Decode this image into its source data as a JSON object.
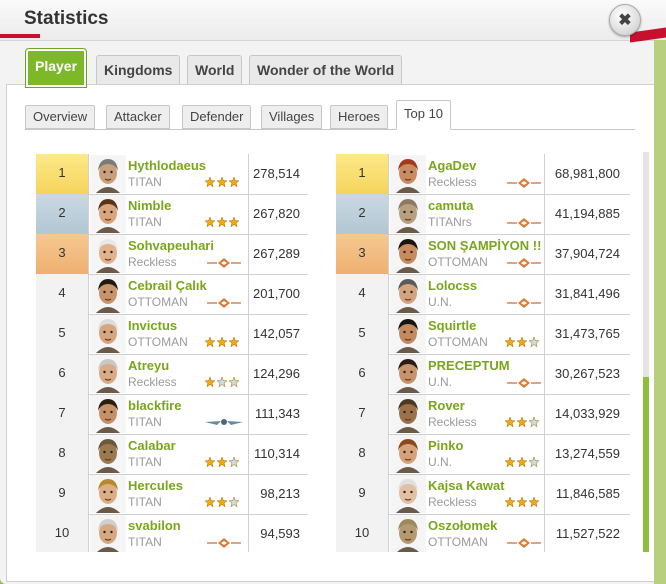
{
  "dialog": {
    "title": "Statistics",
    "close_label": "✖"
  },
  "main_tabs": [
    "Player",
    "Kingdoms",
    "World",
    "Wonder of the World"
  ],
  "sub_tabs": [
    "Overview",
    "Attacker",
    "Defender",
    "Villages",
    "Heroes",
    "Top 10"
  ],
  "left_table": [
    {
      "rank": "1",
      "name": "Hythlodaeus",
      "tribe": "TITAN",
      "points": "278,514",
      "badge": "stars-3-gold",
      "hair": "#7a7a7a",
      "skin": "#c9a07a"
    },
    {
      "rank": "2",
      "name": "Nimble",
      "tribe": "TITAN",
      "points": "267,820",
      "badge": "stars-3-gold",
      "hair": "#5a3418",
      "skin": "#d8a57c"
    },
    {
      "rank": "3",
      "name": "Sohvapeuhari",
      "tribe": "Reckless",
      "points": "267,289",
      "badge": "diamond-red",
      "hair": "#e8e8e8",
      "skin": "#e2b28c"
    },
    {
      "rank": "4",
      "name": "Cebrail Çalık",
      "tribe": "OTTOMAN",
      "points": "201,700",
      "badge": "diamond-red",
      "hair": "#1f1a14",
      "skin": "#c9946a"
    },
    {
      "rank": "5",
      "name": "Invictus",
      "tribe": "OTTOMAN",
      "points": "142,057",
      "badge": "stars-3-gold",
      "hair": "#dcdcdc",
      "skin": "#d7a67e"
    },
    {
      "rank": "6",
      "name": "Atreyu",
      "tribe": "Reckless",
      "points": "124,296",
      "badge": "stars-1-gold",
      "hair": "#c8c8c8",
      "skin": "#d9ab86"
    },
    {
      "rank": "7",
      "name": "blackfire",
      "tribe": "TITAN",
      "points": "111,343",
      "badge": "wings",
      "hair": "#2a1d12",
      "skin": "#c89066"
    },
    {
      "rank": "8",
      "name": "Calabar",
      "tribe": "TITAN",
      "points": "110,314",
      "badge": "stars-2-gold",
      "hair": "#6b5a3a",
      "skin": "#9a7a4e"
    },
    {
      "rank": "9",
      "name": "Hercules",
      "tribe": "TITAN",
      "points": "98,213",
      "badge": "stars-2-gold",
      "hair": "#b48a2c",
      "skin": "#dcae83"
    },
    {
      "rank": "10",
      "name": "svabilon",
      "tribe": "TITAN",
      "points": "94,593",
      "badge": "diamond-red",
      "hair": "#cfcfcf",
      "skin": "#d6a983"
    }
  ],
  "right_table": [
    {
      "rank": "1",
      "name": "AgaDev",
      "tribe": "Reckless",
      "points": "68,981,800",
      "badge": "diamond-red",
      "hair": "#a23a1c",
      "skin": "#c98b5f"
    },
    {
      "rank": "2",
      "name": "camuta",
      "tribe": "TITANrs",
      "points": "41,194,885",
      "badge": "diamond-red",
      "hair": "#8c7a62",
      "skin": "#b8a07e"
    },
    {
      "rank": "3",
      "name": "SON ŞAMPİYON !!",
      "tribe": "OTTOMAN",
      "points": "37,904,724",
      "badge": "diamond-red",
      "hair": "#1a1410",
      "skin": "#c78b5e"
    },
    {
      "rank": "4",
      "name": "Lolocss",
      "tribe": "U.N.",
      "points": "31,841,496",
      "badge": "diamond-red",
      "hair": "#5a5a5a",
      "skin": "#d3a47e"
    },
    {
      "rank": "5",
      "name": "Squirtle",
      "tribe": "OTTOMAN",
      "points": "31,473,765",
      "badge": "stars-2-gold",
      "hair": "#151515",
      "skin": "#c48a5e"
    },
    {
      "rank": "6",
      "name": "PRECEPTUM",
      "tribe": "U.N.",
      "points": "30,267,523",
      "badge": "diamond-red",
      "hair": "#2a1e14",
      "skin": "#c8926a"
    },
    {
      "rank": "7",
      "name": "Rover",
      "tribe": "Reckless",
      "points": "14,033,929",
      "badge": "stars-2-gold",
      "hair": "#4a3a22",
      "skin": "#9c7048"
    },
    {
      "rank": "8",
      "name": "Pinko",
      "tribe": "U.N.",
      "points": "13,274,559",
      "badge": "stars-2-gold",
      "hair": "#8a4a1c",
      "skin": "#d7a27a"
    },
    {
      "rank": "9",
      "name": "Kajsa Kawat",
      "tribe": "Reckless",
      "points": "11,846,585",
      "badge": "stars-3-gold",
      "hair": "#e0e0e0",
      "skin": "#e2c0a4"
    },
    {
      "rank": "10",
      "name": "Oszołomek",
      "tribe": "OTTOMAN",
      "points": "11,527,522",
      "badge": "diamond-red",
      "hair": "#9a8a5a",
      "skin": "#b59a70"
    }
  ],
  "colors": {
    "accent_green": "#7db829",
    "name_green": "#7aa61e",
    "gold": "#f5d45b",
    "silver": "#b2c7d3",
    "bronze": "#eeb071",
    "ribbon_red": "#c8102e"
  }
}
